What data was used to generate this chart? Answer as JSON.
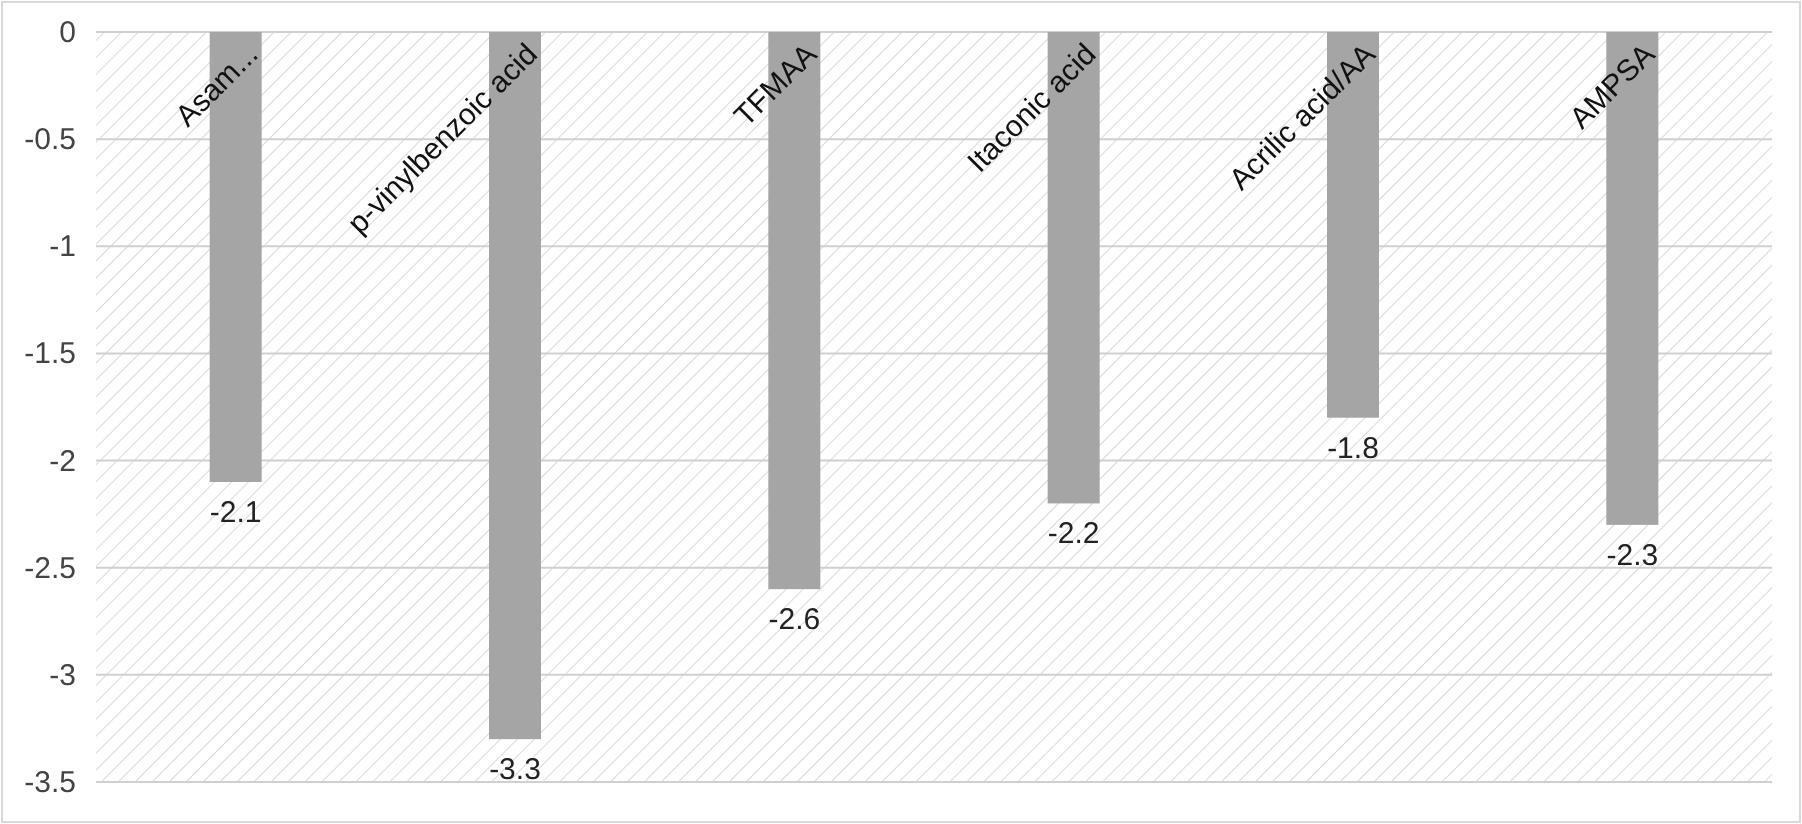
{
  "chart_data": {
    "type": "bar",
    "categories": [
      "Asam...",
      "p-vinylbenzoic acid",
      "TFMAA",
      "Itaconic acid",
      "Acrilic acid/AA",
      "AMPSA"
    ],
    "values": [
      -2.1,
      -3.3,
      -2.6,
      -2.2,
      -1.8,
      -2.3
    ],
    "color": "#a5a5a5",
    "ylim": [
      -3.5,
      0
    ],
    "yticks": [
      -3.5,
      -3,
      -2.5,
      -2,
      -1.5,
      -1,
      -0.5,
      0
    ],
    "grid": "y",
    "data_labels": true
  }
}
